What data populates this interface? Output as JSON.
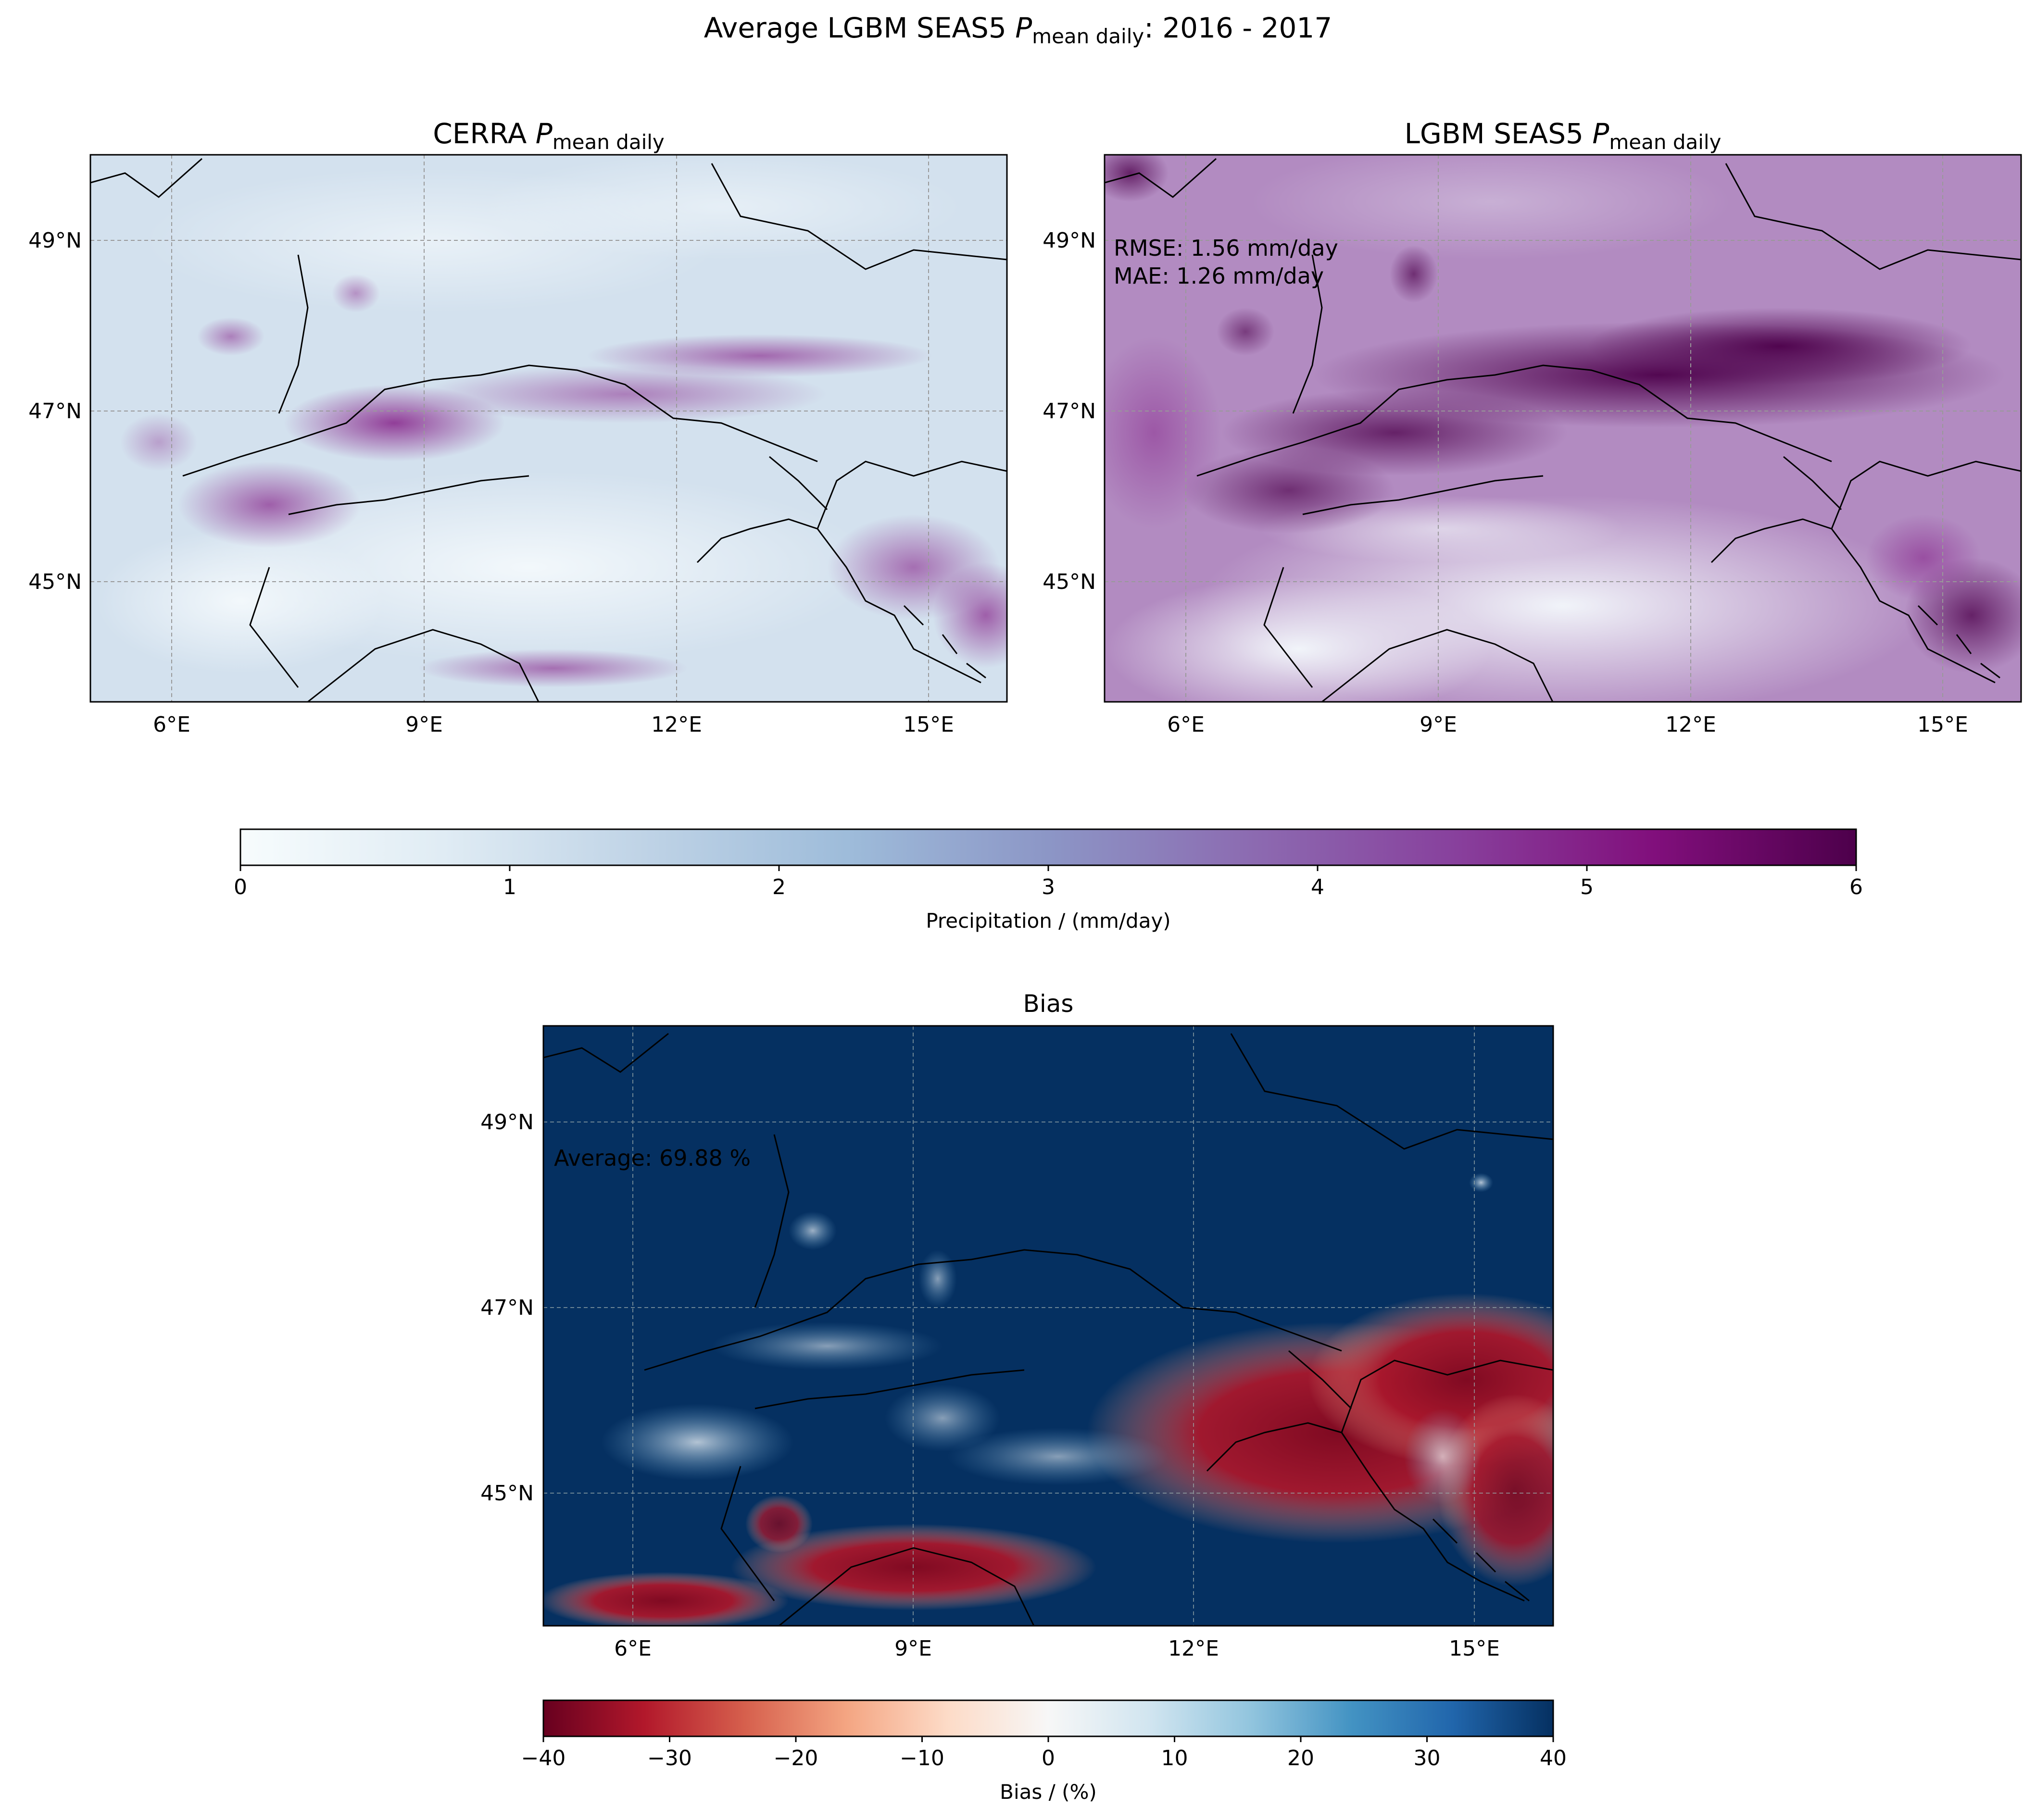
{
  "figure": {
    "title_prefix": "Average LGBM SEAS5 ",
    "title_var": "P",
    "title_sub": "mean daily",
    "title_suffix": ": 2016 - 2017"
  },
  "chart_data": [
    {
      "type": "heatmap",
      "id": "cerra",
      "title_main": "CERRA ",
      "title_var": "P",
      "title_sub": "mean daily",
      "x_ticks": [
        "6°E",
        "9°E",
        "12°E",
        "15°E"
      ],
      "x_tick_values": [
        6,
        9,
        12,
        15
      ],
      "y_ticks": [
        "45°N",
        "47°N",
        "49°N"
      ],
      "y_tick_values": [
        45,
        47,
        49
      ],
      "xlim": [
        5.0,
        15.9
      ],
      "ylim": [
        43.5,
        50.0
      ],
      "grid": true,
      "value_range": [
        0,
        6
      ],
      "colormap": "BuPu"
    },
    {
      "type": "heatmap",
      "id": "lgbm",
      "title_main": "LGBM SEAS5 ",
      "title_var": "P",
      "title_sub": "mean daily",
      "x_ticks": [
        "6°E",
        "9°E",
        "12°E",
        "15°E"
      ],
      "x_tick_values": [
        6,
        9,
        12,
        15
      ],
      "y_ticks": [
        "45°N",
        "47°N",
        "49°N"
      ],
      "y_tick_values": [
        45,
        47,
        49
      ],
      "xlim": [
        5.0,
        15.9
      ],
      "ylim": [
        43.5,
        50.0
      ],
      "grid": true,
      "value_range": [
        0,
        6
      ],
      "colormap": "BuPu",
      "annotations": [
        "RMSE: 1.56 mm/day",
        "MAE: 1.26 mm/day"
      ]
    },
    {
      "type": "heatmap",
      "id": "bias",
      "title": "Bias",
      "x_ticks": [
        "6°E",
        "9°E",
        "12°E",
        "15°E"
      ],
      "x_tick_values": [
        6,
        9,
        12,
        15
      ],
      "y_ticks": [
        "45°N",
        "47°N",
        "49°N"
      ],
      "y_tick_values": [
        45,
        47,
        49
      ],
      "xlim": [
        5.0,
        15.9
      ],
      "ylim": [
        43.5,
        50.0
      ],
      "grid": true,
      "value_range": [
        -40,
        40
      ],
      "colormap": "RdBu",
      "annotations": [
        "Average: 69.88 %"
      ]
    }
  ],
  "colorbars": [
    {
      "id": "precip",
      "label": "Precipitation / (mm/day)",
      "ticks": [
        "0",
        "1",
        "2",
        "3",
        "4",
        "5",
        "6"
      ],
      "tick_values": [
        0,
        1,
        2,
        3,
        4,
        5,
        6
      ],
      "range": [
        0,
        6
      ],
      "colors": [
        "#f7fcfd",
        "#e0ecf4",
        "#bfd3e6",
        "#9ebcda",
        "#8c96c6",
        "#8c6bb1",
        "#88419d",
        "#810f7c",
        "#4d004b"
      ]
    },
    {
      "id": "bias",
      "label": "Bias / (%)",
      "ticks": [
        "−40",
        "−30",
        "−20",
        "−10",
        "0",
        "10",
        "20",
        "30",
        "40"
      ],
      "tick_values": [
        -40,
        -30,
        -20,
        -10,
        0,
        10,
        20,
        30,
        40
      ],
      "range": [
        -40,
        40
      ],
      "colors": [
        "#67001f",
        "#b2182b",
        "#d6604d",
        "#f4a582",
        "#fddbc7",
        "#f7f7f7",
        "#d1e5f0",
        "#92c5de",
        "#4393c3",
        "#2166ac",
        "#053061"
      ]
    }
  ]
}
